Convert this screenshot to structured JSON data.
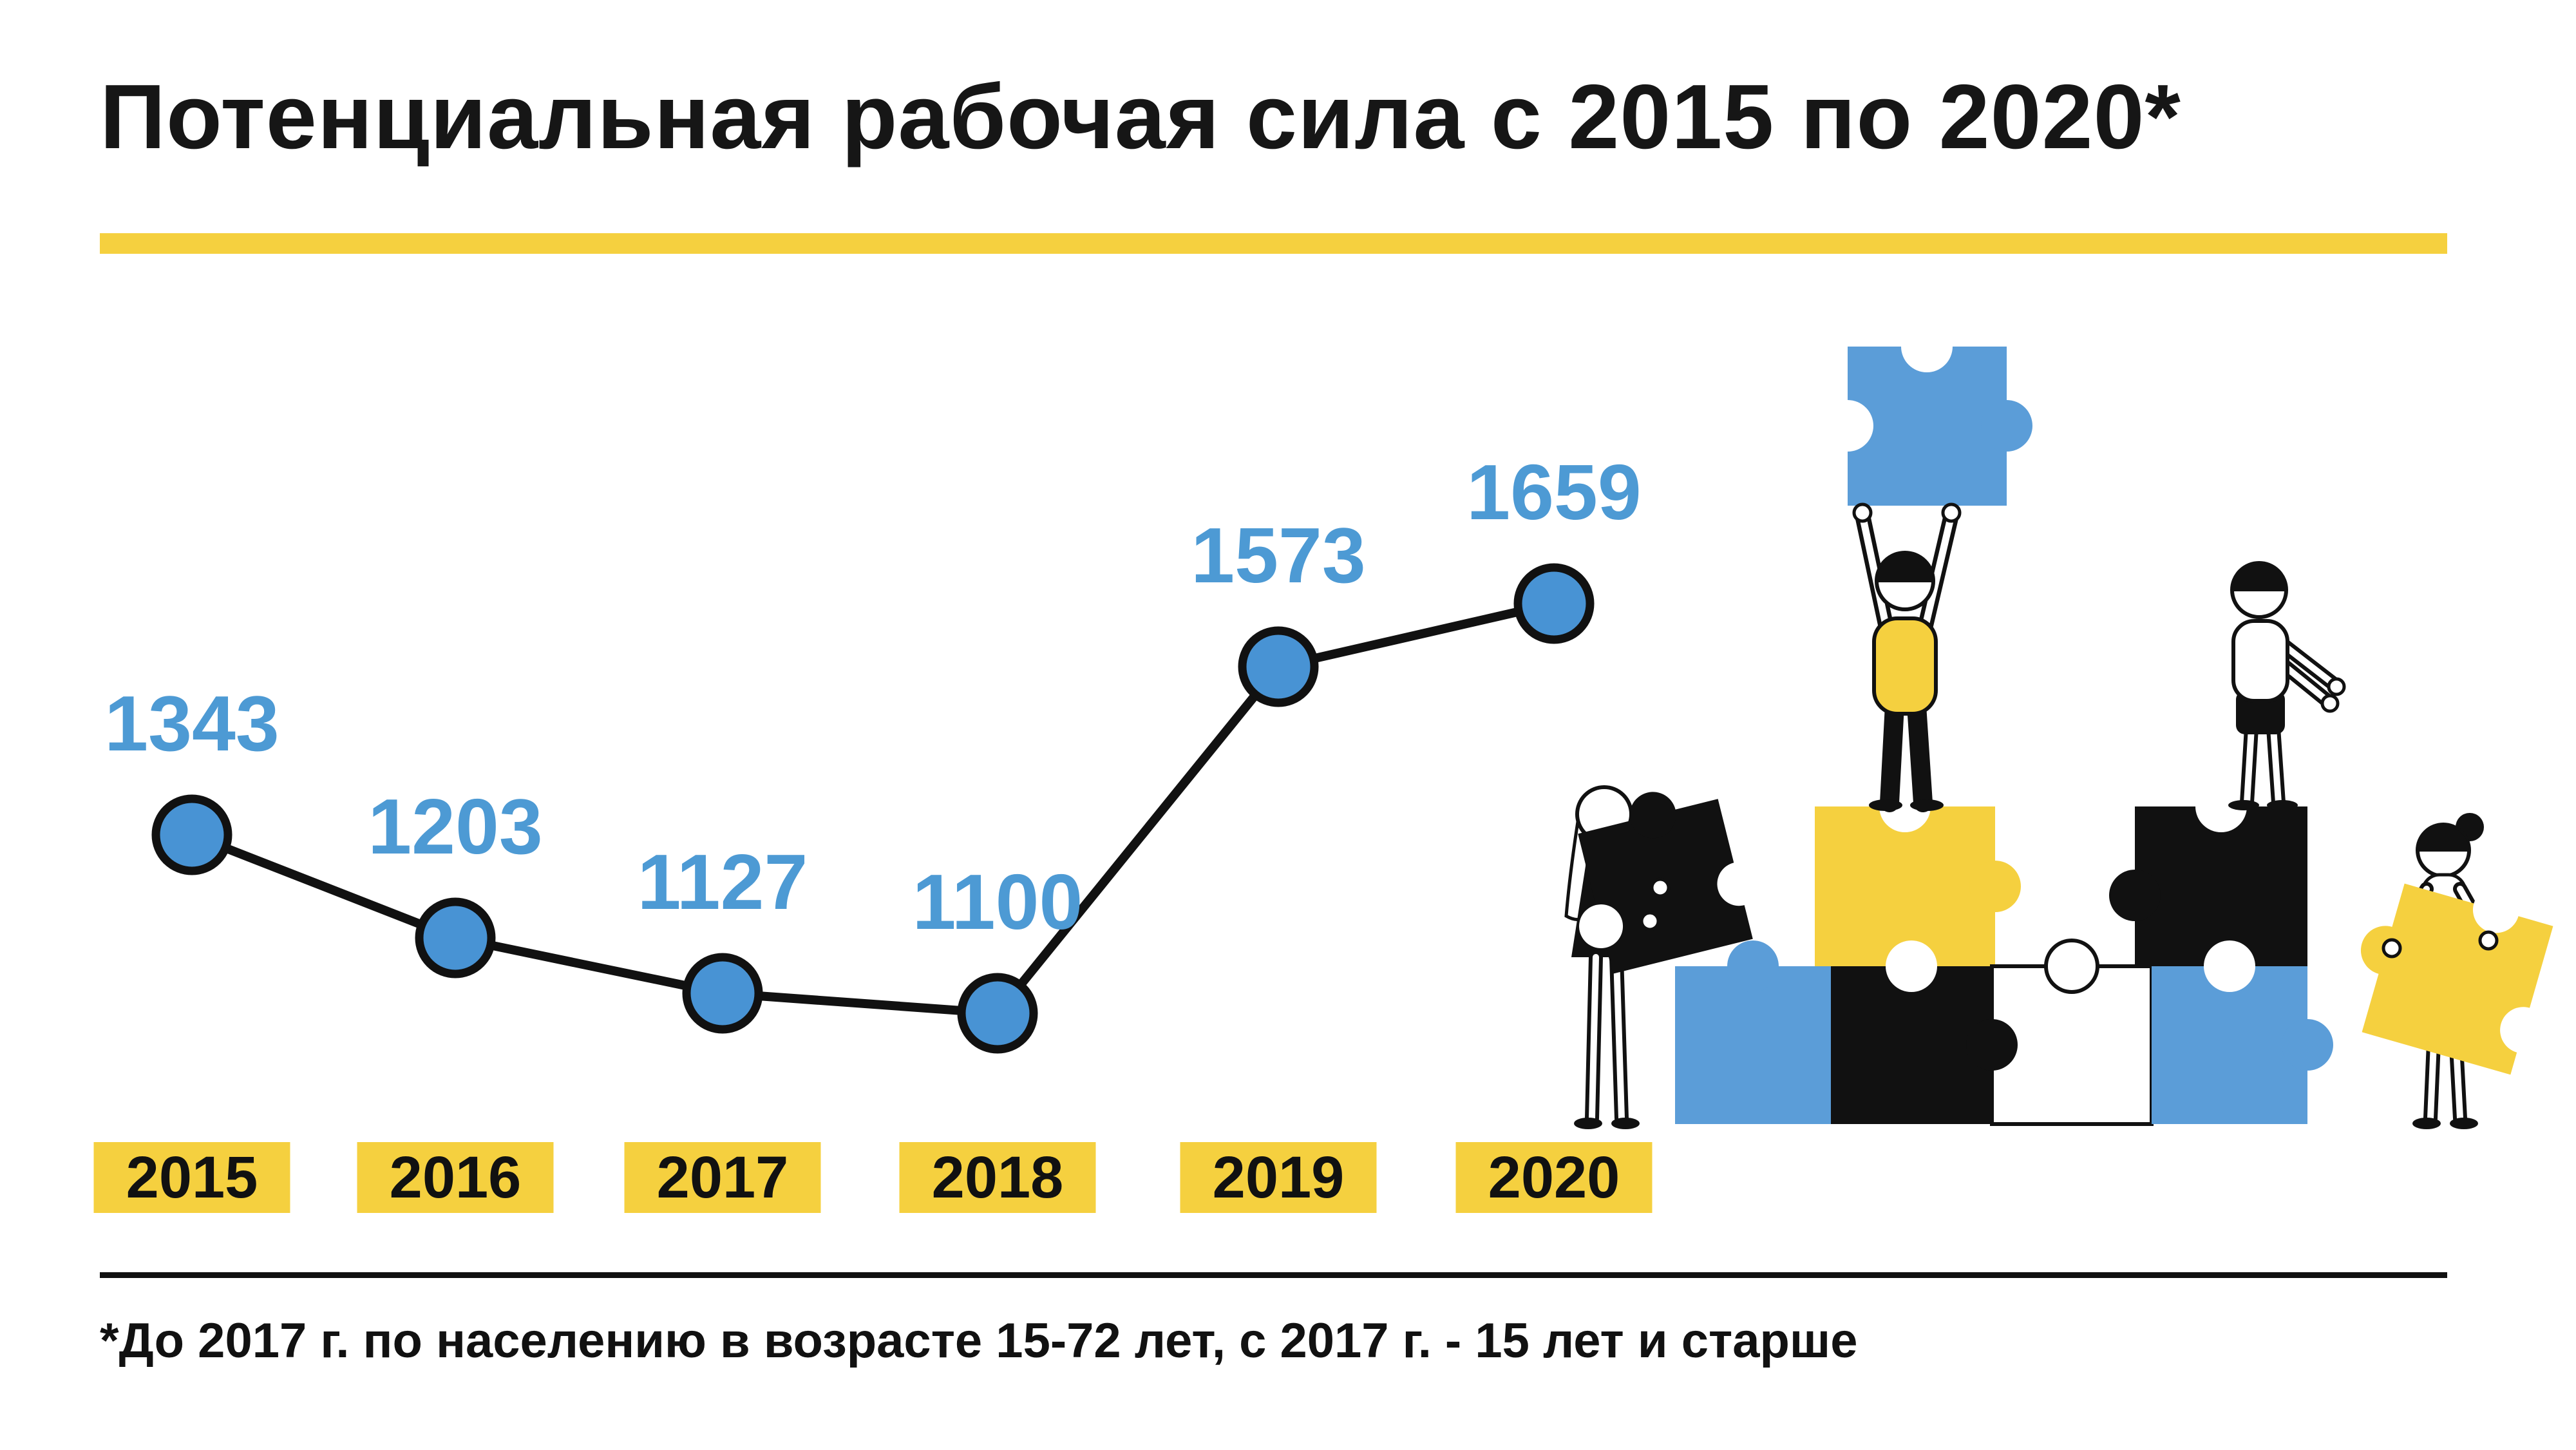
{
  "title": "Потенциальная рабочая сила с 2015 по 2020*",
  "footnote": "*До 2017 г. по населению в возрасте 15-72 лет, с 2017 г. - 15 лет и старше",
  "colors": {
    "accent_yellow": "#F5D03F",
    "dot_blue": "#4893D4",
    "value_label_blue": "#4D9AD4",
    "puzzle_blue": "#5B9DD8",
    "ink": "#111111"
  },
  "chart_data": {
    "type": "line",
    "title": "Потенциальная рабочая сила с 2015 по 2020*",
    "categories": [
      "2015",
      "2016",
      "2017",
      "2018",
      "2019",
      "2020"
    ],
    "values": [
      1343,
      1203,
      1127,
      1100,
      1573,
      1659
    ],
    "xlabel": "",
    "ylabel": "",
    "ylim": [
      1050,
      1700
    ],
    "grid": false,
    "legend": false,
    "marker": "circle",
    "data_labels": "above each point"
  },
  "illustration": {
    "name": "teamwork-puzzle-illustration",
    "description": "Four people assembling a wall of jigsaw puzzle pieces"
  }
}
